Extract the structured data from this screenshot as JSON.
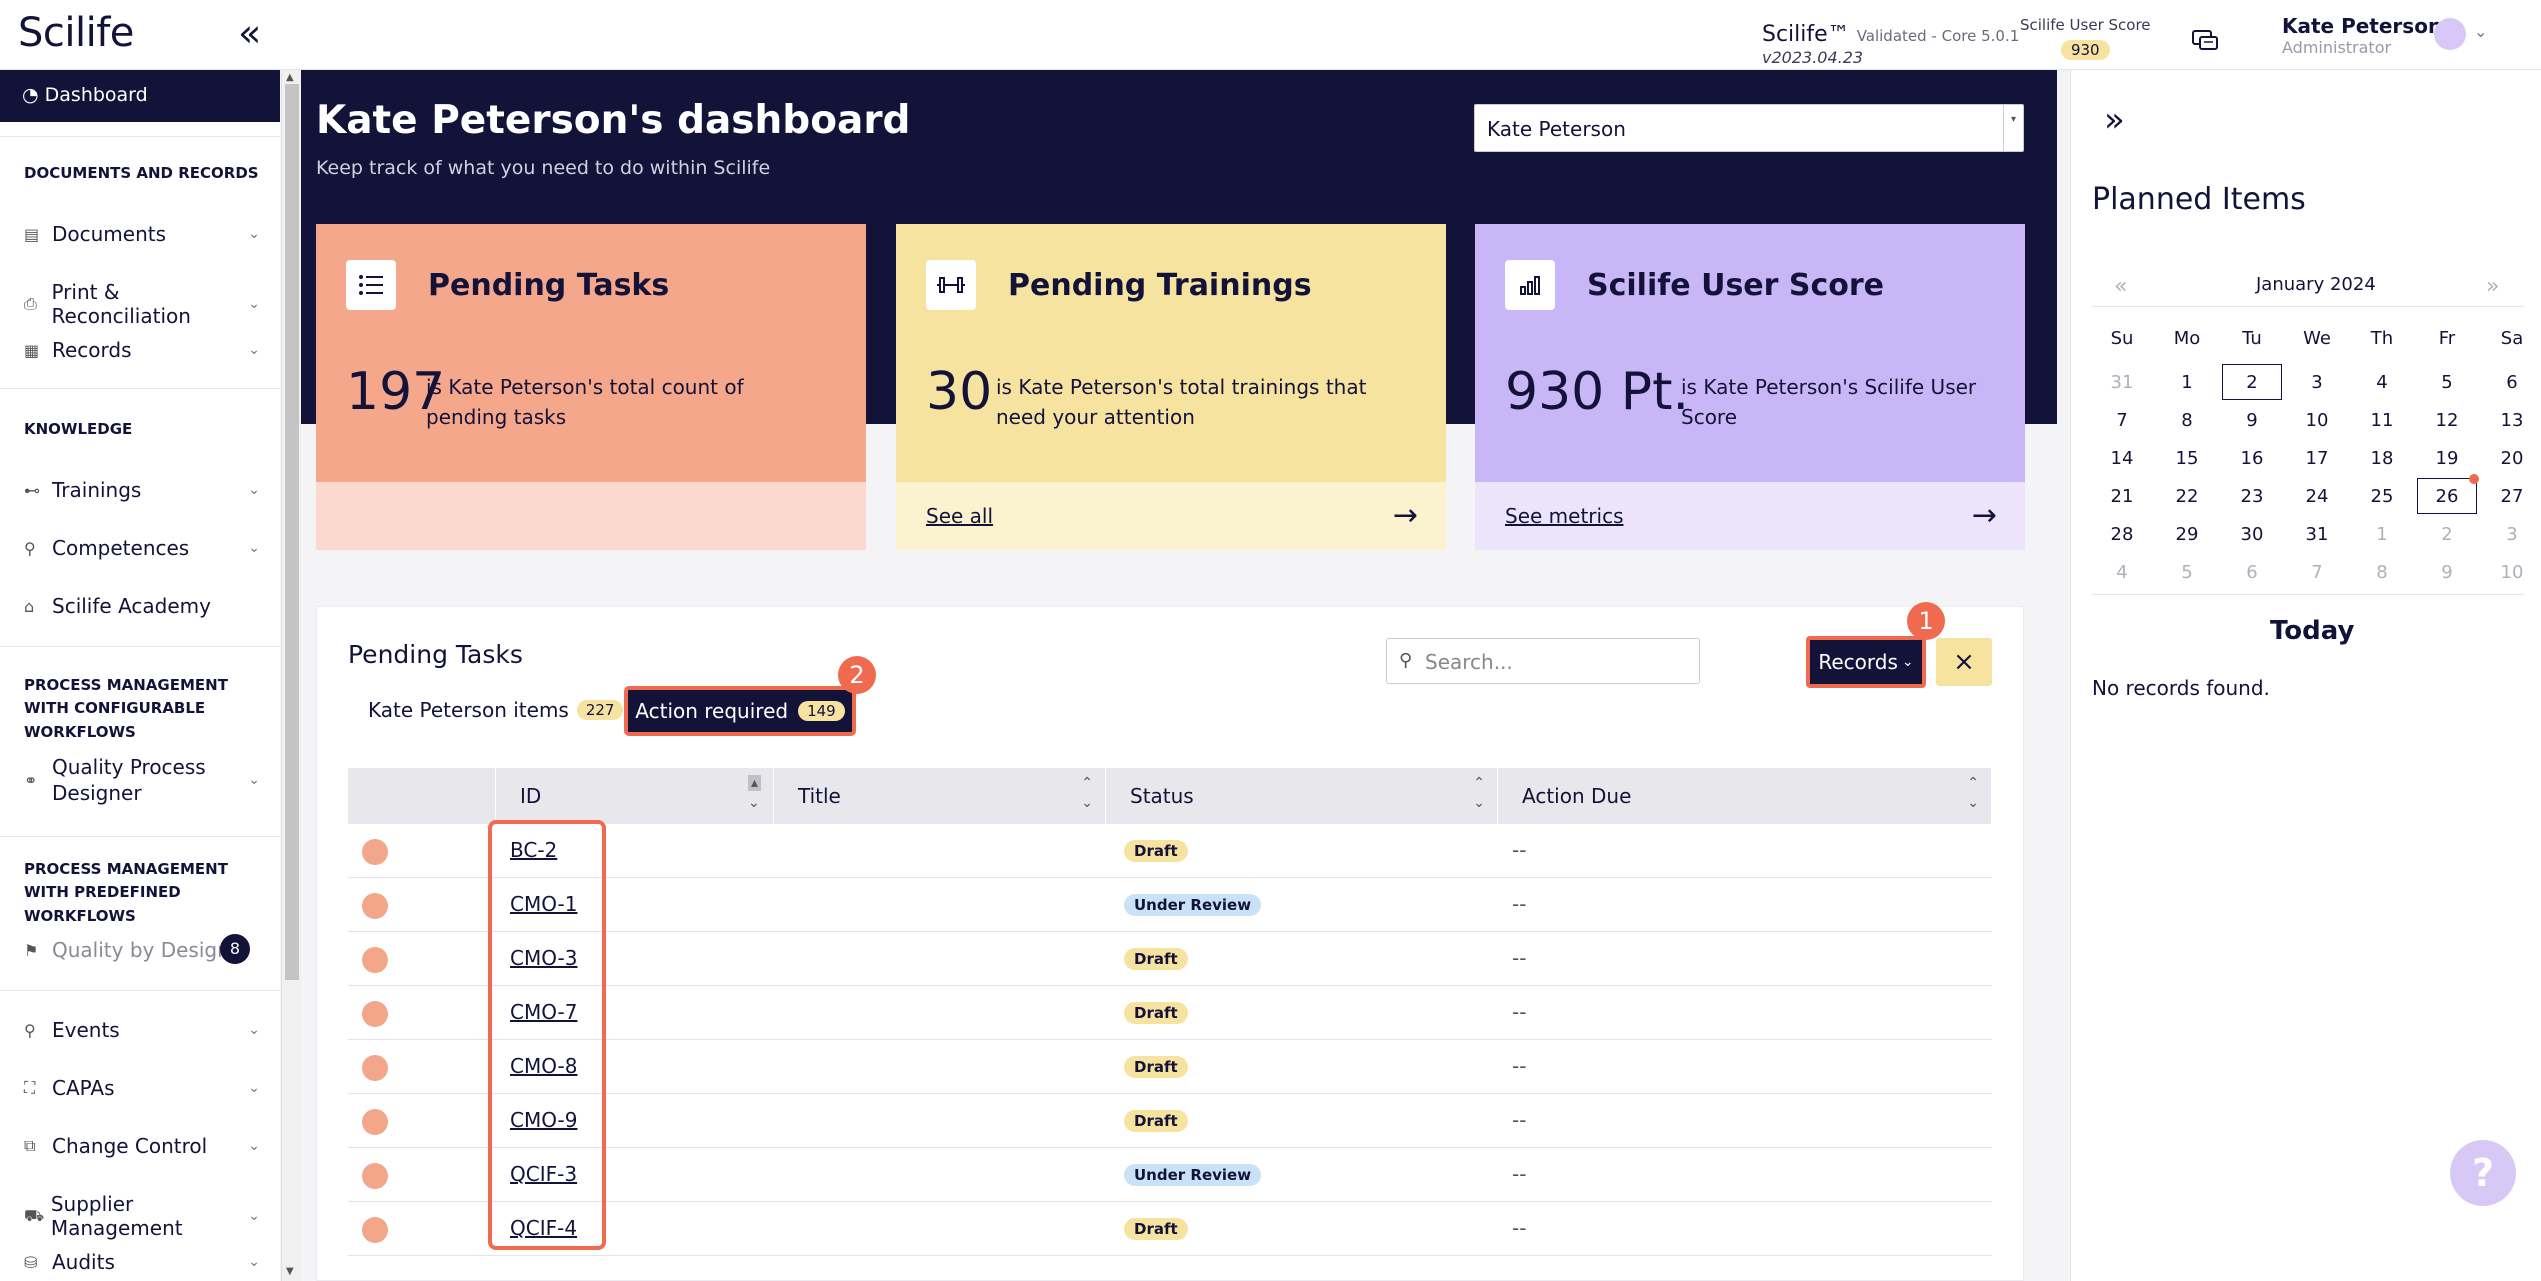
{
  "app": {
    "logo": "Scilife",
    "version_title": "Scilife™",
    "version_suffix": "Validated - Core 5.0.1",
    "version_number": "v2023.04.23",
    "score_label": "Scilife User Score",
    "score_value": "930"
  },
  "user": {
    "name": "Kate Peterson",
    "role": "Administrator"
  },
  "sidebar": {
    "active": "Dashboard",
    "section_docs": "DOCUMENTS AND RECORDS",
    "section_knowledge": "KNOWLEDGE",
    "section_pm_config": "PROCESS MANAGEMENT WITH CONFIGURABLE WORKFLOWS",
    "section_pm_predef": "PROCESS MANAGEMENT WITH PREDEFINED WORKFLOWS",
    "items": {
      "documents": "Documents",
      "print": "Print & Reconciliation",
      "records": "Records",
      "trainings": "Trainings",
      "competences": "Competences",
      "academy": "Scilife Academy",
      "qpd": "Quality Process Designer",
      "qbd": "Quality by Design",
      "qbd_badge": "8",
      "events": "Events",
      "capas": "CAPAs",
      "change": "Change Control",
      "supplier": "Supplier Management",
      "audits": "Audits"
    }
  },
  "dashboard": {
    "title": "Kate Peterson's dashboard",
    "subtitle": "Keep track of what you need to do within Scilife",
    "user_select": "Kate Peterson"
  },
  "cards": {
    "tasks": {
      "title": "Pending Tasks",
      "value": "197",
      "desc": "is Kate Peterson's total count of pending tasks",
      "color": "#f4a78a",
      "bottom_color": "#fbd9cf"
    },
    "trainings": {
      "title": "Pending Trainings",
      "value": "30",
      "desc": "is Kate Peterson's total trainings that need your attention",
      "link": "See all",
      "color": "#f7e3a0",
      "bottom_color": "#fbf2cf"
    },
    "score": {
      "title": "Scilife User Score",
      "value": "930 Pt.",
      "desc": "is Kate Peterson's Scilife User Score",
      "link": "See metrics",
      "color": "#c9b6f6",
      "bottom_color": "#ece4fb"
    }
  },
  "pending": {
    "title": "Pending Tasks",
    "tab1_label": "Kate Peterson items",
    "tab1_count": "227",
    "tab2_label": "Action required",
    "tab2_count": "149",
    "search_placeholder": "Search...",
    "records_btn": "Records",
    "close_btn": "×",
    "marker1": "1",
    "marker2": "2",
    "columns": [
      "ID",
      "Title",
      "Status",
      "Action Due"
    ],
    "rows": [
      {
        "id": "BC-2",
        "status": "Draft",
        "due": "--"
      },
      {
        "id": "CMO-1",
        "status": "Under Review",
        "due": "--"
      },
      {
        "id": "CMO-3",
        "status": "Draft",
        "due": "--"
      },
      {
        "id": "CMO-7",
        "status": "Draft",
        "due": "--"
      },
      {
        "id": "CMO-8",
        "status": "Draft",
        "due": "--"
      },
      {
        "id": "CMO-9",
        "status": "Draft",
        "due": "--"
      },
      {
        "id": "QCIF-3",
        "status": "Under Review",
        "due": "--"
      },
      {
        "id": "QCIF-4",
        "status": "Draft",
        "due": "--"
      }
    ]
  },
  "planned": {
    "title": "Planned Items",
    "month": "January 2024",
    "prev": "«",
    "next": "»",
    "weekdays": [
      "Su",
      "Mo",
      "Tu",
      "We",
      "Th",
      "Fr",
      "Sa"
    ],
    "weeks": [
      [
        "31",
        "1",
        "2",
        "3",
        "4",
        "5",
        "6"
      ],
      [
        "7",
        "8",
        "9",
        "10",
        "11",
        "12",
        "13"
      ],
      [
        "14",
        "15",
        "16",
        "17",
        "18",
        "19",
        "20"
      ],
      [
        "21",
        "22",
        "23",
        "24",
        "25",
        "26",
        "27"
      ],
      [
        "28",
        "29",
        "30",
        "31",
        "1",
        "2",
        "3"
      ],
      [
        "4",
        "5",
        "6",
        "7",
        "8",
        "9",
        "10"
      ]
    ],
    "today_title": "Today",
    "no_records": "No records found.",
    "help": "?"
  }
}
